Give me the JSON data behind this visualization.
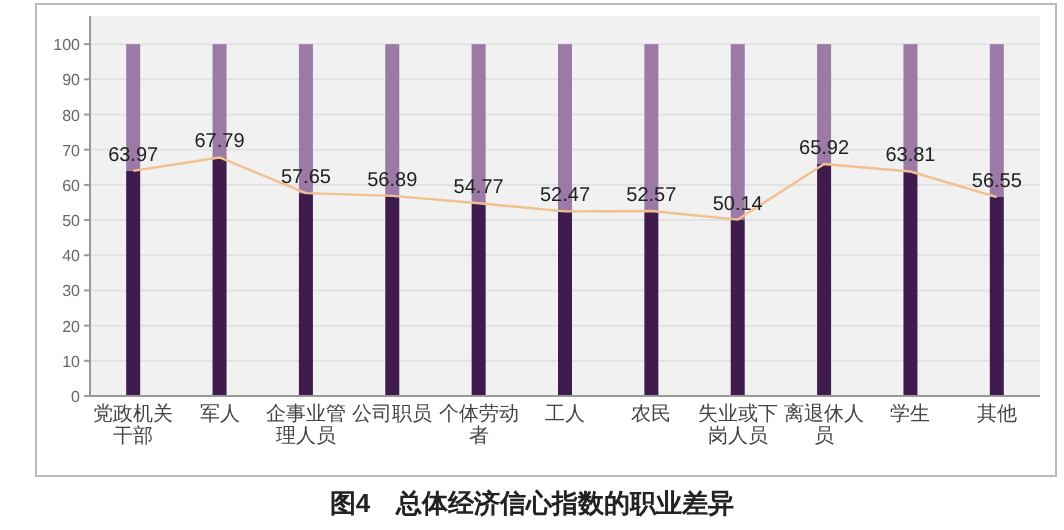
{
  "chart_data": {
    "type": "bar",
    "stacked": true,
    "title": "图4　总体经济信心指数的职业差异",
    "categories": [
      "党政机关干部",
      "军人",
      "企事业管理人员",
      "公司职员",
      "个体劳动者",
      "工人",
      "农民",
      "失业或下岗人员",
      "离退休人员",
      "学生",
      "其他"
    ],
    "series": [
      {
        "color": "#3f1c4d",
        "values": [
          63.97,
          67.79,
          57.65,
          56.89,
          54.77,
          52.47,
          52.57,
          50.14,
          65.92,
          63.81,
          56.55
        ],
        "value_labels": [
          "63.97",
          "67.79",
          "57.65",
          "56.89",
          "54.77",
          "52.47",
          "52.57",
          "50.14",
          "65.92",
          "63.81",
          "56.55"
        ]
      },
      {
        "color": "#9b7aa5",
        "values": [
          36.03,
          32.21,
          42.35,
          43.11,
          45.23,
          47.53,
          47.43,
          49.86,
          34.08,
          36.19,
          43.45
        ]
      },
      {
        "type": "line",
        "color": "#f2c08f",
        "values": [
          63.97,
          67.79,
          57.65,
          56.89,
          54.77,
          52.47,
          52.57,
          50.14,
          65.92,
          63.81,
          56.55
        ]
      }
    ],
    "ylim": [
      0,
      108
    ],
    "yticks": [
      0,
      10,
      20,
      30,
      40,
      50,
      60,
      70,
      80,
      90,
      100
    ],
    "grid": "y"
  }
}
